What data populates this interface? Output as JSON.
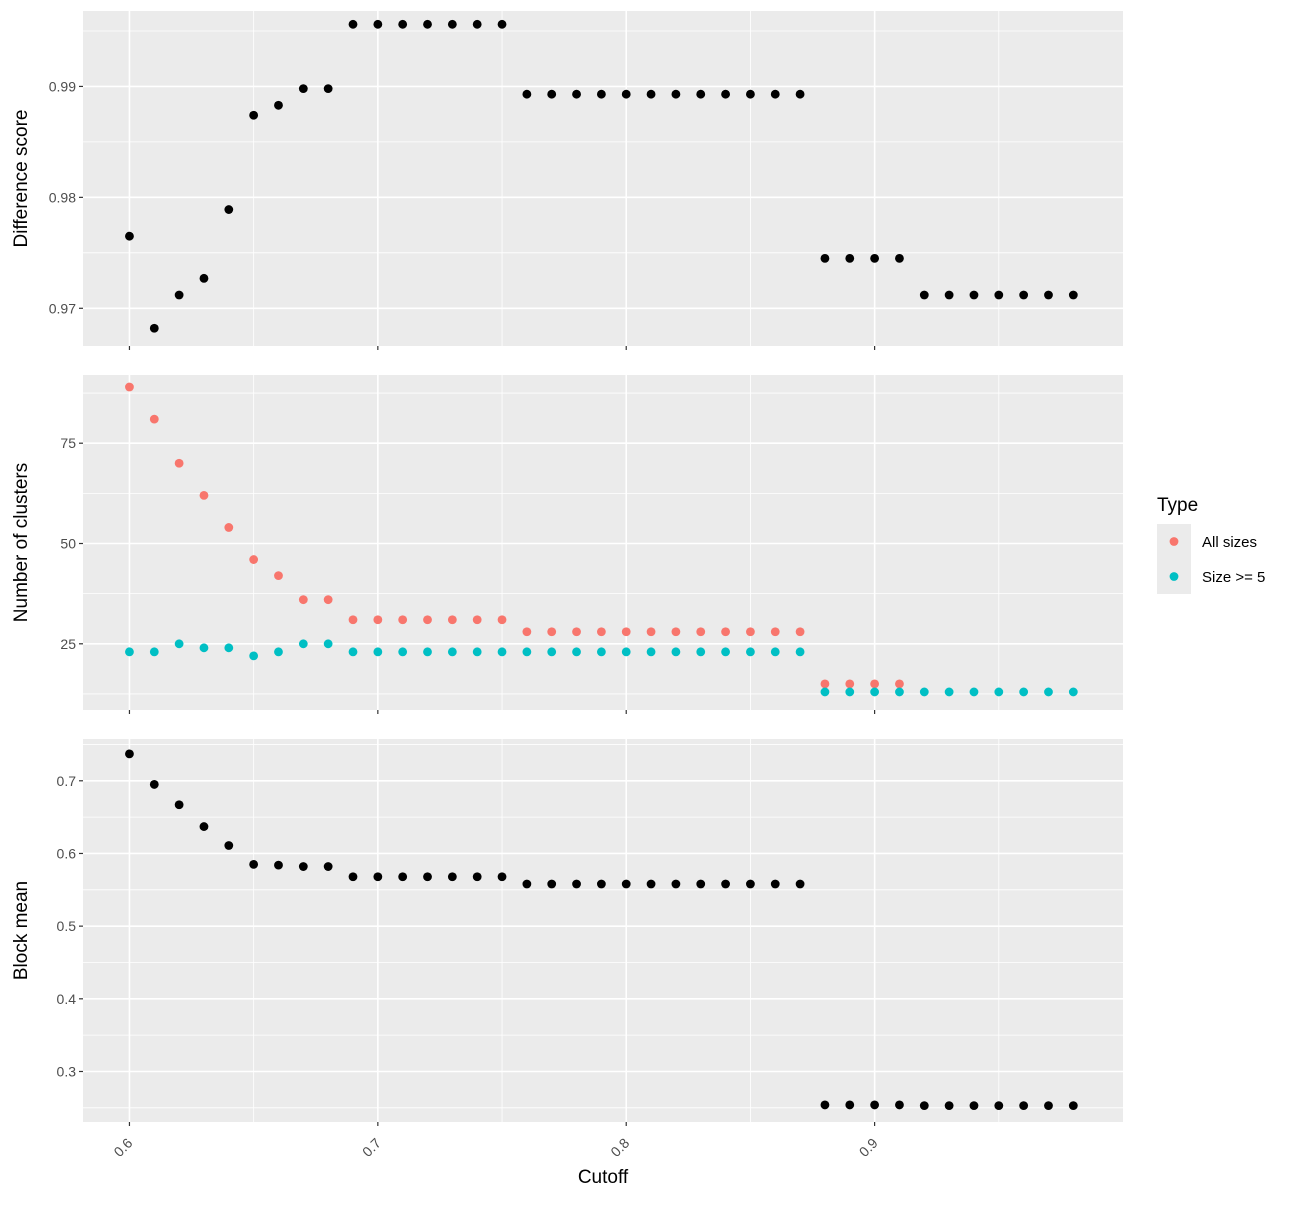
{
  "chart_data": [
    {
      "type": "scatter",
      "ylabel": "Difference score",
      "ylim": [
        0.9666,
        0.9968
      ],
      "yticks": [
        0.97,
        0.98,
        0.99
      ],
      "ytick_labels": [
        "0.97",
        "0.98",
        "0.99"
      ],
      "series": [
        {
          "x": [
            0.6,
            0.61,
            0.62,
            0.63,
            0.64,
            0.65,
            0.66,
            0.67,
            0.68,
            0.69,
            0.7,
            0.71,
            0.72,
            0.73,
            0.74,
            0.75,
            0.76,
            0.77,
            0.78,
            0.79,
            0.8,
            0.81,
            0.82,
            0.83,
            0.84,
            0.85,
            0.86,
            0.87,
            0.88,
            0.89,
            0.9,
            0.91,
            0.92,
            0.93,
            0.94,
            0.95,
            0.96,
            0.97,
            0.98
          ],
          "y": [
            0.9765,
            0.9682,
            0.9712,
            0.9727,
            0.9789,
            0.9874,
            0.9883,
            0.9898,
            0.9898,
            0.9956,
            0.9956,
            0.9956,
            0.9956,
            0.9956,
            0.9956,
            0.9956,
            0.9893,
            0.9893,
            0.9893,
            0.9893,
            0.9893,
            0.9893,
            0.9893,
            0.9893,
            0.9893,
            0.9893,
            0.9893,
            0.9893,
            0.9745,
            0.9745,
            0.9745,
            0.9745,
            0.9712,
            0.9712,
            0.9712,
            0.9712,
            0.9712,
            0.9712,
            0.9712
          ],
          "color": "#000000"
        }
      ]
    },
    {
      "type": "scatter",
      "ylabel": "Number of clusters",
      "ylim": [
        8.5,
        92.0
      ],
      "yticks": [
        25,
        50,
        75
      ],
      "ytick_labels": [
        "25",
        "50",
        "75"
      ],
      "legend": {
        "title": "Type",
        "position": "right",
        "entries": [
          {
            "label": "All sizes",
            "color": "#F8766D"
          },
          {
            "label": "Size >= 5",
            "color": "#00BFC4"
          }
        ]
      },
      "series": [
        {
          "name": "All sizes",
          "color": "#F8766D",
          "x": [
            0.6,
            0.61,
            0.62,
            0.63,
            0.64,
            0.65,
            0.66,
            0.67,
            0.68,
            0.69,
            0.7,
            0.71,
            0.72,
            0.73,
            0.74,
            0.75,
            0.76,
            0.77,
            0.78,
            0.79,
            0.8,
            0.81,
            0.82,
            0.83,
            0.84,
            0.85,
            0.86,
            0.87,
            0.88,
            0.89,
            0.9,
            0.91
          ],
          "y": [
            89,
            81,
            70,
            62,
            54,
            46,
            42,
            36,
            36,
            31,
            31,
            31,
            31,
            31,
            31,
            31,
            28,
            28,
            28,
            28,
            28,
            28,
            28,
            28,
            28,
            28,
            28,
            28,
            15,
            15,
            15,
            15
          ]
        },
        {
          "name": "Size >= 5",
          "color": "#00BFC4",
          "x": [
            0.6,
            0.61,
            0.62,
            0.63,
            0.64,
            0.65,
            0.66,
            0.67,
            0.68,
            0.69,
            0.7,
            0.71,
            0.72,
            0.73,
            0.74,
            0.75,
            0.76,
            0.77,
            0.78,
            0.79,
            0.8,
            0.81,
            0.82,
            0.83,
            0.84,
            0.85,
            0.86,
            0.87,
            0.88,
            0.89,
            0.9,
            0.91,
            0.92,
            0.93,
            0.94,
            0.95,
            0.96,
            0.97,
            0.98
          ],
          "y": [
            23,
            23,
            25,
            24,
            24,
            22,
            23,
            25,
            25,
            23,
            23,
            23,
            23,
            23,
            23,
            23,
            23,
            23,
            23,
            23,
            23,
            23,
            23,
            23,
            23,
            23,
            23,
            23,
            13,
            13,
            13,
            13,
            13,
            13,
            13,
            13,
            13,
            13,
            13
          ]
        }
      ]
    },
    {
      "type": "scatter",
      "ylabel": "Block mean",
      "xlabel": "Cutoff",
      "ylim": [
        0.2305,
        0.7575
      ],
      "yticks": [
        0.3,
        0.4,
        0.5,
        0.6,
        0.7
      ],
      "ytick_labels": [
        "0.3",
        "0.4",
        "0.5",
        "0.6",
        "0.7"
      ],
      "series": [
        {
          "x": [
            0.6,
            0.61,
            0.62,
            0.63,
            0.64,
            0.65,
            0.66,
            0.67,
            0.68,
            0.69,
            0.7,
            0.71,
            0.72,
            0.73,
            0.74,
            0.75,
            0.76,
            0.77,
            0.78,
            0.79,
            0.8,
            0.81,
            0.82,
            0.83,
            0.84,
            0.85,
            0.86,
            0.87,
            0.88,
            0.89,
            0.9,
            0.91,
            0.92,
            0.93,
            0.94,
            0.95,
            0.96,
            0.97,
            0.98
          ],
          "y": [
            0.737,
            0.695,
            0.667,
            0.637,
            0.611,
            0.585,
            0.584,
            0.582,
            0.582,
            0.568,
            0.568,
            0.568,
            0.568,
            0.568,
            0.568,
            0.568,
            0.558,
            0.558,
            0.558,
            0.558,
            0.558,
            0.558,
            0.558,
            0.558,
            0.558,
            0.558,
            0.558,
            0.558,
            0.254,
            0.254,
            0.254,
            0.254,
            0.253,
            0.253,
            0.253,
            0.253,
            0.253,
            0.253,
            0.253
          ],
          "color": "#000000"
        }
      ]
    }
  ],
  "shared_x": {
    "label": "Cutoff",
    "xlim": [
      0.5813,
      1.0
    ],
    "ticks": [
      0.6,
      0.7,
      0.8,
      0.9
    ],
    "tick_labels": [
      "0.6",
      "0.7",
      "0.8",
      "0.9"
    ]
  },
  "style": {
    "panel_background": "#EBEBEB",
    "grid_color": "#FFFFFF",
    "text_color": "#4D4D4D",
    "title_color": "#000000",
    "point_color": "#000000"
  }
}
